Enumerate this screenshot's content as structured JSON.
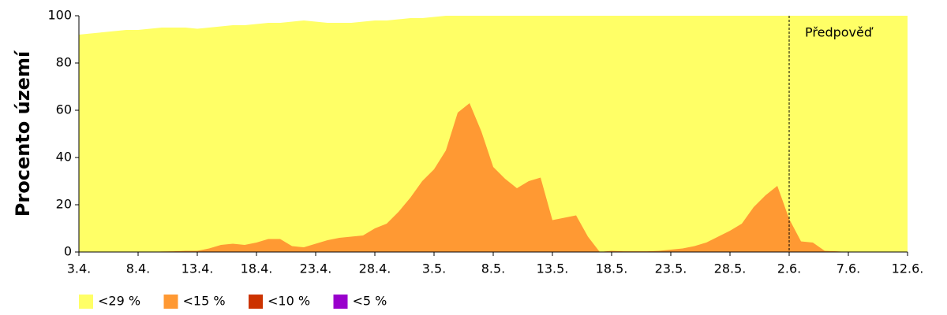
{
  "chart_data": {
    "type": "area",
    "y_label": "Procento území",
    "categories": [
      "3.4.",
      null,
      null,
      null,
      null,
      "8.4.",
      null,
      null,
      null,
      null,
      "13.4.",
      null,
      null,
      null,
      null,
      "18.4.",
      null,
      null,
      null,
      null,
      "23.4.",
      null,
      null,
      null,
      null,
      "28.4.",
      null,
      null,
      null,
      null,
      "3.5.",
      null,
      null,
      null,
      null,
      "8.5.",
      null,
      null,
      null,
      null,
      "13.5.",
      null,
      null,
      null,
      null,
      "18.5.",
      null,
      null,
      null,
      null,
      "23.5.",
      null,
      null,
      null,
      null,
      "28.5.",
      null,
      null,
      null,
      null,
      "2.6.",
      null,
      null,
      null,
      null,
      "7.6.",
      null,
      null,
      null,
      null,
      "12.6."
    ],
    "series": [
      {
        "name": "<29 %",
        "color": "#ffff66",
        "values": [
          92,
          92.5,
          93,
          93.5,
          94,
          94,
          94.5,
          95,
          95,
          95,
          94.5,
          95,
          95.5,
          96,
          96,
          96.5,
          97,
          97,
          97.5,
          98,
          97.5,
          97,
          97,
          97,
          97.5,
          98,
          98,
          98.5,
          99,
          99,
          99.5,
          100,
          100,
          100,
          100,
          100,
          100,
          100,
          100,
          100,
          100,
          100,
          100,
          100,
          100,
          100,
          100,
          100,
          100,
          100,
          100,
          100,
          100,
          100,
          100,
          100,
          100,
          100,
          100,
          100,
          100,
          100,
          100,
          100,
          100,
          100,
          100,
          100,
          100,
          100,
          100
        ]
      },
      {
        "name": "<15 %",
        "color": "#ff9933",
        "values": [
          0,
          0,
          0,
          0,
          0,
          0,
          0,
          0.2,
          0.3,
          0.5,
          0.5,
          1.5,
          3,
          3.5,
          3,
          4,
          5.5,
          5.5,
          2.5,
          2,
          3.5,
          5,
          6,
          6.5,
          7,
          10,
          12,
          17,
          23,
          30,
          35,
          43,
          59,
          63,
          51,
          36,
          31,
          27,
          30,
          31.5,
          13.5,
          14.5,
          15.5,
          6.5,
          0,
          0.5,
          0.3,
          0.3,
          0.3,
          0.5,
          1,
          1.5,
          2.5,
          4,
          6.5,
          9,
          12,
          19,
          24,
          28,
          14,
          4.5,
          4,
          0.5,
          0.3,
          0,
          0,
          0,
          0,
          0,
          0
        ]
      },
      {
        "name": "<10 %",
        "color": "#cc3300",
        "values": [
          0,
          0,
          0,
          0,
          0,
          0,
          0,
          0,
          0,
          0,
          0,
          0,
          0,
          0,
          0,
          0,
          0,
          0,
          0,
          0,
          0,
          0,
          0,
          0,
          0,
          0,
          0,
          0,
          0,
          0,
          0,
          0,
          0,
          0,
          0,
          0,
          0,
          0,
          0,
          0,
          0,
          0,
          0,
          0,
          0,
          0,
          0,
          0,
          0,
          0,
          0,
          0,
          0,
          0,
          0,
          0,
          0,
          0,
          0,
          0,
          0,
          0,
          0,
          0,
          0,
          0,
          0,
          0,
          0,
          0,
          0
        ]
      },
      {
        "name": "<5 %",
        "color": "#9900cc",
        "values": [
          0,
          0,
          0,
          0,
          0,
          0,
          0,
          0,
          0,
          0,
          0,
          0,
          0,
          0,
          0,
          0,
          0,
          0,
          0,
          0,
          0,
          0,
          0,
          0,
          0,
          0,
          0,
          0,
          0,
          0,
          0,
          0,
          0,
          0,
          0,
          0,
          0,
          0,
          0,
          0,
          0,
          0,
          0,
          0,
          0,
          0,
          0,
          0,
          0,
          0,
          0,
          0,
          0,
          0,
          0,
          0,
          0,
          0,
          0,
          0,
          0,
          0,
          0,
          0,
          0,
          0,
          0,
          0,
          0,
          0,
          0
        ]
      }
    ],
    "ylim": [
      0,
      100
    ],
    "yticks": [
      0,
      20,
      40,
      60,
      80,
      100
    ],
    "forecast": {
      "label": "Předpověď",
      "category": "2.6."
    },
    "legend": "bottom"
  }
}
